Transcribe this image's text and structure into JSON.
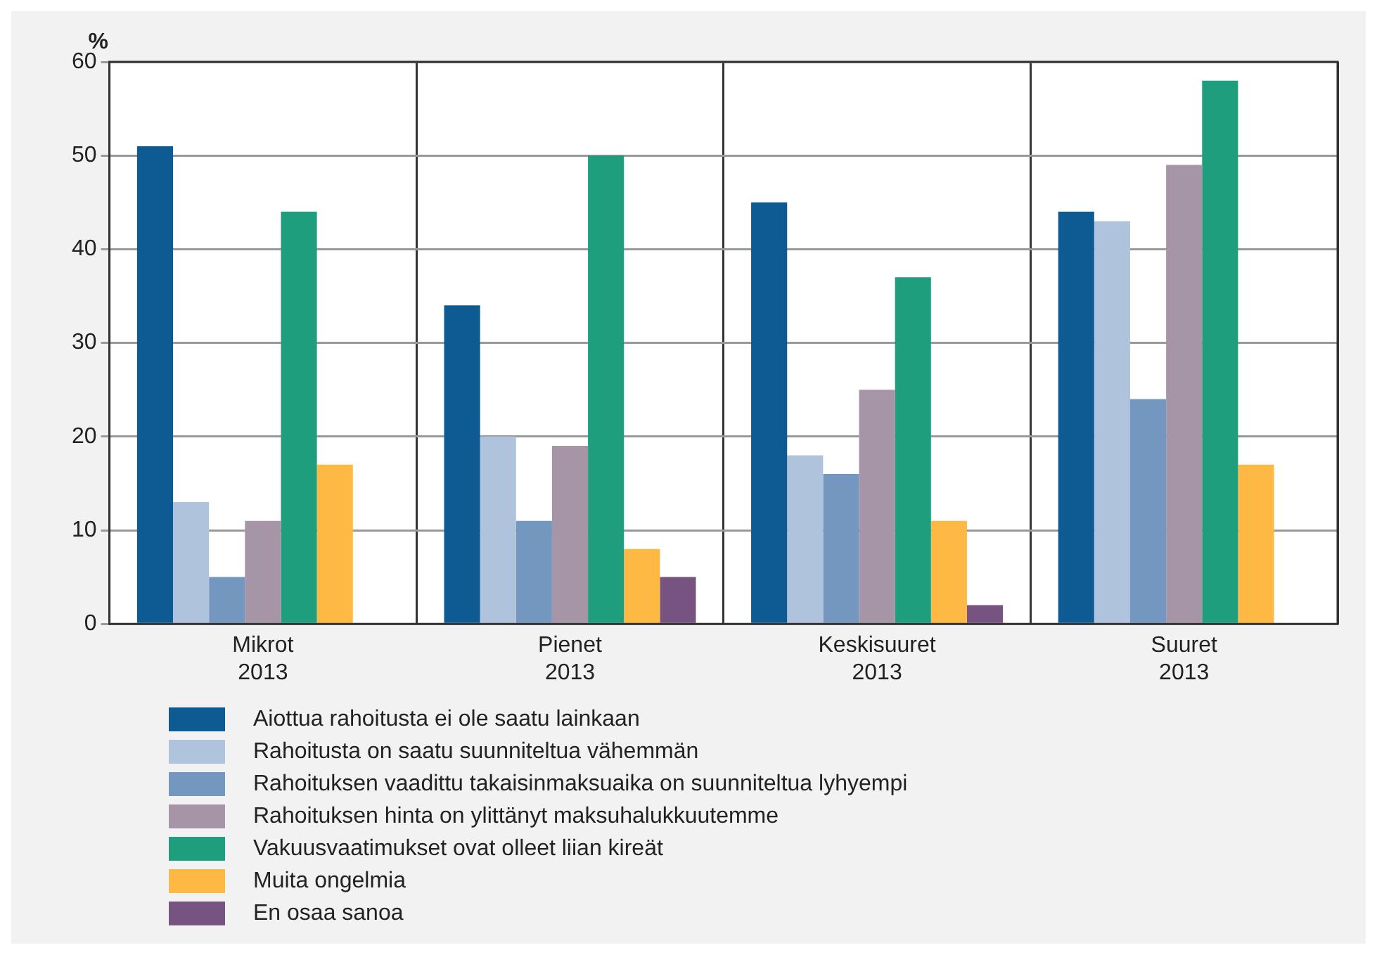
{
  "chart_data": {
    "type": "bar",
    "ylabel": "%",
    "categories": [
      "Mikrot\n2013",
      "Pienet\n2013",
      "Keskisuuret\n2013",
      "Suuret\n2013"
    ],
    "series": [
      {
        "name": "Aiottua rahoitusta ei ole saatu lainkaan",
        "color": "#0e5a92",
        "values": [
          51,
          34,
          45,
          44
        ]
      },
      {
        "name": "Rahoitusta on saatu suunniteltua vähemmän",
        "color": "#b0c3dc",
        "values": [
          13,
          20,
          18,
          43
        ]
      },
      {
        "name": "Rahoituksen vaadittu takaisinmaksuaika on suunniteltua lyhyempi",
        "color": "#7497bf",
        "values": [
          5,
          11,
          16,
          24
        ]
      },
      {
        "name": "Rahoituksen hinta on ylittänyt maksuhalukkuutemme",
        "color": "#a595a7",
        "values": [
          11,
          19,
          25,
          49
        ]
      },
      {
        "name": "Vakuusvaatimukset ovat olleet liian kireät",
        "color": "#1f9e7e",
        "values": [
          44,
          50,
          37,
          58
        ]
      },
      {
        "name": "Muita ongelmia",
        "color": "#fdb944",
        "values": [
          17,
          8,
          11,
          17
        ]
      },
      {
        "name": "En osaa sanoa",
        "color": "#765380",
        "values": [
          0,
          5,
          2,
          0
        ]
      }
    ],
    "ylim": [
      0,
      60
    ],
    "yticks": [
      0,
      10,
      20,
      30,
      40,
      50,
      60
    ],
    "grid": true,
    "legend": "bottom"
  }
}
